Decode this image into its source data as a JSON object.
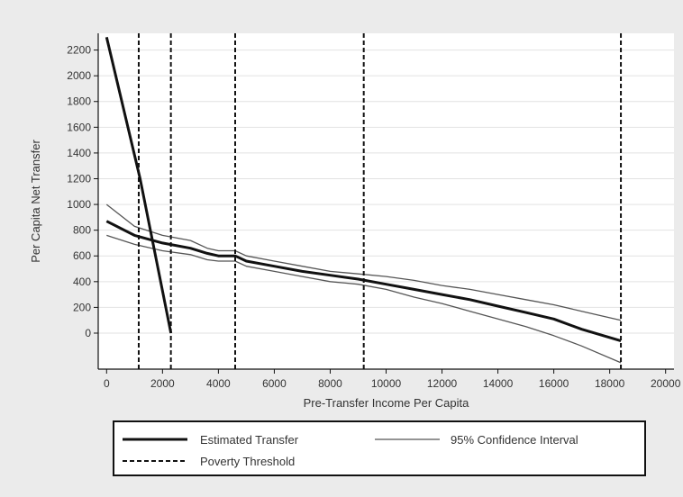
{
  "chart_data": {
    "type": "line",
    "xlabel": "Pre-Transfer Income Per Capita",
    "ylabel": "Per Capita Net Transfer",
    "xlim": [
      -300,
      20300
    ],
    "ylim": [
      -280,
      2330
    ],
    "x_ticks": [
      0,
      2000,
      4000,
      6000,
      8000,
      10000,
      12000,
      14000,
      16000,
      18000,
      20000
    ],
    "y_ticks": [
      0,
      200,
      400,
      600,
      800,
      1000,
      1200,
      1400,
      1600,
      1800,
      2000,
      2200
    ],
    "grid": true,
    "legend_position": "bottom",
    "colors": {
      "background": "#ebebeb",
      "plot": "#ffffff",
      "line": "#111111",
      "ci": "#555555",
      "grid": "#e2e2e2"
    },
    "series": [
      {
        "name": "Estimated Transfer",
        "style": "solid-thick",
        "x": [
          0,
          1000,
          2000,
          3000,
          3600,
          4000,
          4600,
          5000,
          6000,
          7000,
          8000,
          9000,
          10000,
          11000,
          12000,
          13000,
          14000,
          15000,
          16000,
          17000,
          18400
        ],
        "y": [
          870,
          760,
          700,
          660,
          620,
          600,
          600,
          560,
          520,
          480,
          450,
          420,
          380,
          340,
          300,
          260,
          210,
          160,
          110,
          30,
          -60
        ]
      },
      {
        "name": "95% Confidence Interval",
        "style": "solid-thin",
        "x": [
          0,
          1000,
          2000,
          3000,
          3600,
          4000,
          4600,
          5000,
          6000,
          7000,
          8000,
          9000,
          10000,
          11000,
          12000,
          13000,
          14000,
          15000,
          16000,
          17000,
          18400
        ],
        "y": [
          1000,
          830,
          760,
          720,
          660,
          640,
          640,
          600,
          560,
          520,
          480,
          460,
          440,
          410,
          370,
          340,
          300,
          260,
          220,
          170,
          100
        ]
      },
      {
        "name": "",
        "style": "solid-thin",
        "x": [
          0,
          1000,
          2000,
          3000,
          3600,
          4000,
          4600,
          5000,
          6000,
          7000,
          8000,
          9000,
          10000,
          11000,
          12000,
          13000,
          14000,
          15000,
          16000,
          17000,
          18400
        ],
        "y": [
          760,
          690,
          640,
          610,
          570,
          560,
          560,
          520,
          480,
          440,
          400,
          380,
          340,
          280,
          230,
          170,
          110,
          50,
          -20,
          -100,
          -230
        ]
      },
      {
        "name": "",
        "style": "solid-thick",
        "x": [
          0,
          1200,
          2300
        ],
        "y": [
          2300,
          1200,
          0
        ]
      }
    ],
    "vlines": {
      "name": "Poverty Threshold",
      "style": "dashed",
      "x": [
        1150,
        2300,
        4600,
        9200,
        18400
      ]
    },
    "legend": [
      {
        "label": "Estimated Transfer",
        "style": "solid-thick"
      },
      {
        "label": "95% Confidence Interval",
        "style": "solid-thin"
      },
      {
        "label": "Poverty Threshold",
        "style": "dashed"
      }
    ]
  }
}
